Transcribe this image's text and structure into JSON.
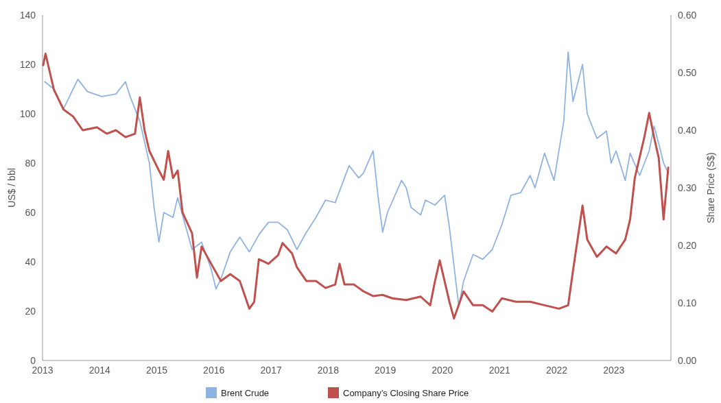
{
  "chart_data": {
    "type": "line",
    "ylabel": "US$ / bbl",
    "y2label": "Share Price (S$)",
    "xlim": [
      "2013-01-01",
      "2024-01-01"
    ],
    "xticks": [
      "2013",
      "2014",
      "2015",
      "2016",
      "2017",
      "2018",
      "2019",
      "2020",
      "2021",
      "2022",
      "2023"
    ],
    "ylim": [
      0,
      140
    ],
    "yticks": [
      0,
      20,
      40,
      60,
      80,
      100,
      120,
      140
    ],
    "y2lim": [
      0,
      0.6
    ],
    "y2ticks": [
      {
        "value": 0,
        "label": "0.00"
      },
      {
        "value": 0.1,
        "label": "0.10"
      },
      {
        "value": 0.2,
        "label": "0.20"
      },
      {
        "value": 0.3,
        "label": "0.30"
      },
      {
        "value": 0.4,
        "label": "0.40"
      },
      {
        "value": 0.5,
        "label": "0.50"
      },
      {
        "value": 0.6,
        "label": "0.60"
      }
    ],
    "grid": false,
    "legend": "bottom",
    "series": [
      {
        "name": "Brent Crude",
        "color": "#8fb3e0",
        "x": [
          "2013-01-15",
          "2013-03-15",
          "2013-05-15",
          "2013-08-15",
          "2013-10-15",
          "2014-01-15",
          "2014-04-15",
          "2014-06-15",
          "2014-07-15",
          "2014-09-15",
          "2014-11-15",
          "2014-12-15",
          "2015-01-15",
          "2015-02-15",
          "2015-04-15",
          "2015-05-15",
          "2015-08-15",
          "2015-10-15",
          "2015-12-15",
          "2016-01-15",
          "2016-02-15",
          "2016-04-15",
          "2016-06-15",
          "2016-08-15",
          "2016-10-15",
          "2016-12-15",
          "2017-02-15",
          "2017-04-15",
          "2017-06-15",
          "2017-08-15",
          "2017-10-15",
          "2017-12-15",
          "2018-02-15",
          "2018-04-15",
          "2018-05-15",
          "2018-07-15",
          "2018-08-15",
          "2018-10-15",
          "2018-11-15",
          "2018-12-15",
          "2019-01-15",
          "2019-04-15",
          "2019-05-15",
          "2019-06-15",
          "2019-08-15",
          "2019-09-15",
          "2019-11-15",
          "2020-01-15",
          "2020-02-15",
          "2020-04-15",
          "2020-05-15",
          "2020-07-15",
          "2020-09-15",
          "2020-11-15",
          "2021-01-15",
          "2021-03-15",
          "2021-05-15",
          "2021-07-15",
          "2021-08-15",
          "2021-10-15",
          "2021-12-15",
          "2022-02-15",
          "2022-03-15",
          "2022-04-15",
          "2022-06-15",
          "2022-07-15",
          "2022-09-15",
          "2022-11-15",
          "2022-12-15",
          "2023-01-15",
          "2023-03-15",
          "2023-04-15",
          "2023-06-15",
          "2023-08-15",
          "2023-09-15",
          "2023-10-15",
          "2023-11-15",
          "2023-12-15"
        ],
        "values": [
          113,
          110,
          102,
          114,
          109,
          107,
          108,
          113,
          107,
          97,
          80,
          62,
          48,
          60,
          58,
          66,
          45,
          48,
          37,
          29,
          33,
          44,
          50,
          44,
          51,
          56,
          56,
          53,
          45,
          52,
          58,
          65,
          64,
          74,
          79,
          74,
          76,
          85,
          67,
          52,
          60,
          73,
          70,
          62,
          59,
          65,
          63,
          67,
          54,
          22,
          32,
          43,
          41,
          45,
          55,
          67,
          68,
          75,
          70,
          84,
          73,
          97,
          125,
          105,
          120,
          100,
          90,
          93,
          80,
          85,
          73,
          84,
          75,
          85,
          95,
          88,
          80,
          76
        ]
      },
      {
        "name": "Company’s Closing Share Price",
        "color": "#c0504d",
        "axis": "y2",
        "x": [
          "2013-01-05",
          "2013-01-20",
          "2013-03-15",
          "2013-05-15",
          "2013-07-15",
          "2013-09-15",
          "2013-12-15",
          "2014-02-15",
          "2014-04-15",
          "2014-06-15",
          "2014-08-15",
          "2014-09-15",
          "2014-10-15",
          "2014-11-15",
          "2015-01-15",
          "2015-02-15",
          "2015-03-15",
          "2015-04-15",
          "2015-05-15",
          "2015-06-15",
          "2015-08-15",
          "2015-09-15",
          "2015-10-15",
          "2015-12-15",
          "2016-02-15",
          "2016-04-15",
          "2016-06-15",
          "2016-08-15",
          "2016-09-15",
          "2016-10-15",
          "2016-12-15",
          "2017-02-15",
          "2017-03-15",
          "2017-05-15",
          "2017-06-15",
          "2017-08-15",
          "2017-10-15",
          "2017-12-15",
          "2018-02-15",
          "2018-03-15",
          "2018-04-15",
          "2018-06-15",
          "2018-08-15",
          "2018-10-15",
          "2018-12-15",
          "2019-02-15",
          "2019-05-15",
          "2019-08-15",
          "2019-10-15",
          "2019-11-15",
          "2019-12-15",
          "2020-01-15",
          "2020-02-15",
          "2020-03-15",
          "2020-05-15",
          "2020-07-15",
          "2020-09-15",
          "2020-11-15",
          "2021-01-15",
          "2021-04-15",
          "2021-07-15",
          "2021-10-15",
          "2022-01-15",
          "2022-03-15",
          "2022-04-15",
          "2022-06-15",
          "2022-07-15",
          "2022-09-15",
          "2022-11-15",
          "2023-01-15",
          "2023-03-15",
          "2023-04-15",
          "2023-05-15",
          "2023-07-15",
          "2023-08-15",
          "2023-09-15",
          "2023-10-15",
          "2023-11-15",
          "2023-12-15"
        ],
        "values": [
          0.513,
          0.533,
          0.47,
          0.436,
          0.424,
          0.4,
          0.405,
          0.394,
          0.4,
          0.388,
          0.394,
          0.457,
          0.4,
          0.364,
          0.33,
          0.314,
          0.364,
          0.317,
          0.33,
          0.257,
          0.221,
          0.144,
          0.198,
          0.168,
          0.138,
          0.15,
          0.138,
          0.09,
          0.102,
          0.176,
          0.168,
          0.183,
          0.204,
          0.186,
          0.162,
          0.138,
          0.138,
          0.126,
          0.132,
          0.168,
          0.132,
          0.132,
          0.12,
          0.112,
          0.114,
          0.108,
          0.105,
          0.111,
          0.096,
          0.138,
          0.174,
          0.138,
          0.102,
          0.073,
          0.12,
          0.096,
          0.096,
          0.085,
          0.108,
          0.102,
          0.102,
          0.096,
          0.09,
          0.096,
          0.156,
          0.269,
          0.21,
          0.18,
          0.198,
          0.186,
          0.21,
          0.245,
          0.317,
          0.388,
          0.43,
          0.388,
          0.352,
          0.245,
          0.335
        ]
      }
    ]
  }
}
